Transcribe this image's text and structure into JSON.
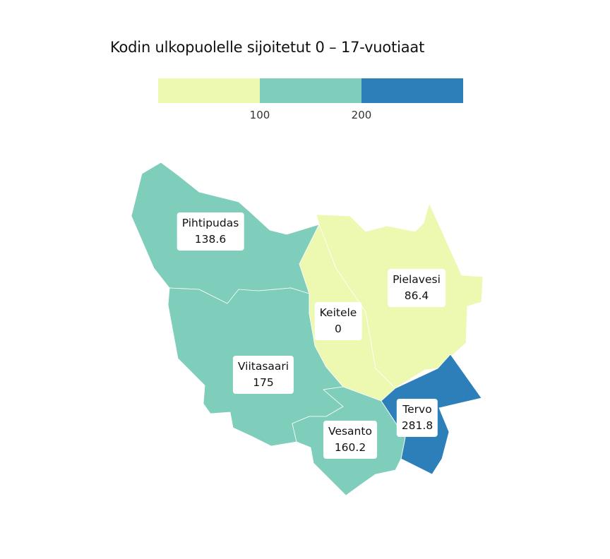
{
  "title": "Kodin ulkopuolelle sijoitetut 0 – 17-vuotiaat",
  "legend": {
    "bins": [
      {
        "color": "#edf8b1"
      },
      {
        "color": "#7fcdbb"
      },
      {
        "color": "#2c7fb8"
      }
    ],
    "ticks": [
      "100",
      "200"
    ]
  },
  "regions": [
    {
      "name": "Pihtipudas",
      "value": "138.6",
      "color": "#7fcdbb"
    },
    {
      "name": "Viitasaari",
      "value": "175",
      "color": "#7fcdbb"
    },
    {
      "name": "Keitele",
      "value": "0",
      "color": "#edf8b1"
    },
    {
      "name": "Pielavesi",
      "value": "86.4",
      "color": "#edf8b1"
    },
    {
      "name": "Tervo",
      "value": "281.8",
      "color": "#2c7fb8"
    },
    {
      "name": "Vesanto",
      "value": "160.2",
      "color": "#7fcdbb"
    }
  ]
}
